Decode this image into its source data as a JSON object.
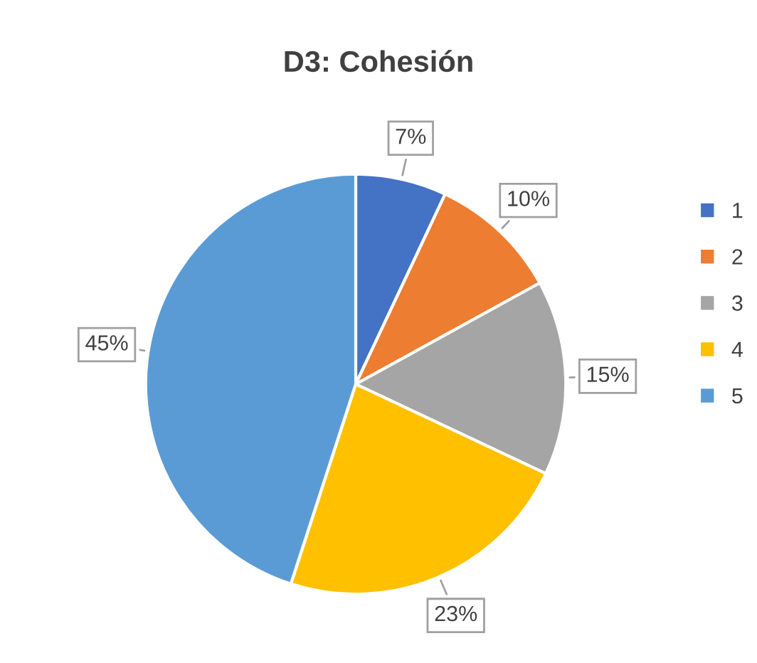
{
  "chart_data": {
    "type": "pie",
    "title": "D3: Cohesión",
    "categories": [
      "1",
      "2",
      "3",
      "4",
      "5"
    ],
    "values": [
      7,
      10,
      15,
      23,
      45
    ],
    "value_labels": [
      "7%",
      "10%",
      "15%",
      "23%",
      "45%"
    ],
    "colors": [
      "#4472c4",
      "#ed7d31",
      "#a5a5a5",
      "#ffc000",
      "#5b9bd5"
    ],
    "legend": "right"
  }
}
